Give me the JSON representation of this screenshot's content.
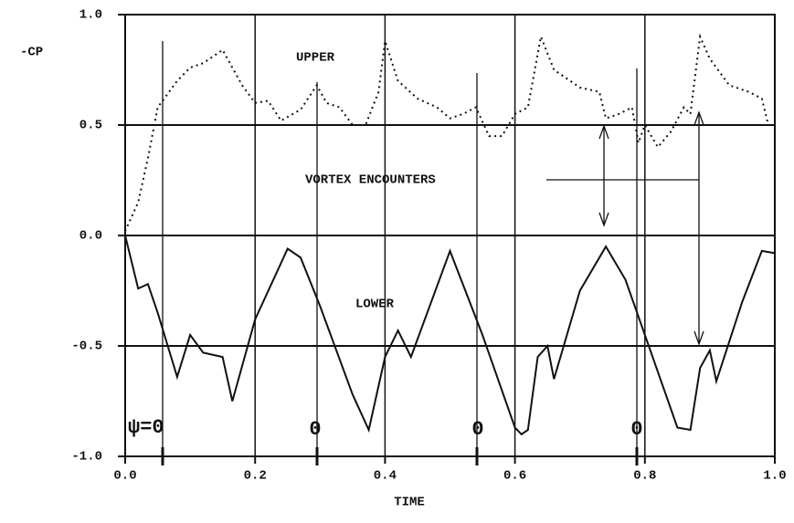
{
  "chart_data": {
    "type": "line",
    "xlabel": "TIME",
    "ylabel": "-CP",
    "annotations": [
      "VORTEX ENCOUNTERS",
      "ψ=0",
      "0",
      "0",
      "0"
    ],
    "xlim": [
      0,
      1
    ],
    "ylim": [
      -1,
      1
    ],
    "xticks": [
      {
        "value": 0,
        "label": "0.0"
      },
      0.2,
      0.4,
      0.6,
      0.8,
      {
        "value": 1,
        "label": "1.0"
      }
    ],
    "yticks": [
      {
        "value": 1,
        "label": "1.0"
      },
      0.5,
      {
        "value": 0,
        "label": "0.0"
      },
      -0.5,
      {
        "value": -1,
        "label": "-1.0"
      }
    ],
    "grid": true,
    "series": [
      {
        "name": "UPPER",
        "color": "#111111",
        "line_style": "dotted",
        "x": [
          0,
          0.02,
          0.035,
          0.05,
          0.06,
          0.08,
          0.1,
          0.12,
          0.15,
          0.18,
          0.2,
          0.22,
          0.24,
          0.27,
          0.295,
          0.31,
          0.33,
          0.35,
          0.37,
          0.39,
          0.4,
          0.42,
          0.45,
          0.48,
          0.5,
          0.52,
          0.54,
          0.56,
          0.58,
          0.6,
          0.62,
          0.64,
          0.66,
          0.7,
          0.73,
          0.74,
          0.76,
          0.78,
          0.79,
          0.8,
          0.82,
          0.84,
          0.86,
          0.87,
          0.885,
          0.9,
          0.93,
          0.96,
          0.98,
          0.99,
          1.0
        ],
        "values": [
          0.02,
          0.15,
          0.35,
          0.58,
          0.62,
          0.7,
          0.76,
          0.78,
          0.84,
          0.68,
          0.6,
          0.61,
          0.52,
          0.57,
          0.68,
          0.6,
          0.58,
          0.5,
          0.5,
          0.65,
          0.88,
          0.7,
          0.62,
          0.58,
          0.53,
          0.55,
          0.58,
          0.45,
          0.45,
          0.55,
          0.58,
          0.9,
          0.75,
          0.67,
          0.65,
          0.53,
          0.55,
          0.58,
          0.42,
          0.5,
          0.4,
          0.47,
          0.58,
          0.55,
          0.9,
          0.8,
          0.68,
          0.65,
          0.62,
          0.5,
          0.5
        ]
      },
      {
        "name": "LOWER",
        "color": "#111111",
        "line_style": "solid",
        "x": [
          0,
          0.02,
          0.035,
          0.05,
          0.08,
          0.1,
          0.12,
          0.15,
          0.165,
          0.2,
          0.25,
          0.27,
          0.3,
          0.35,
          0.375,
          0.4,
          0.42,
          0.44,
          0.5,
          0.55,
          0.6,
          0.61,
          0.62,
          0.635,
          0.65,
          0.66,
          0.7,
          0.74,
          0.77,
          0.8,
          0.85,
          0.87,
          0.885,
          0.9,
          0.91,
          0.95,
          0.98,
          1.0
        ],
        "values": [
          0,
          -0.24,
          -0.22,
          -0.35,
          -0.64,
          -0.45,
          -0.53,
          -0.55,
          -0.75,
          -0.38,
          -0.06,
          -0.1,
          -0.32,
          -0.72,
          -0.88,
          -0.55,
          -0.43,
          -0.55,
          -0.07,
          -0.45,
          -0.87,
          -0.9,
          -0.88,
          -0.55,
          -0.5,
          -0.65,
          -0.25,
          -0.05,
          -0.2,
          -0.45,
          -0.87,
          -0.88,
          -0.6,
          -0.52,
          -0.66,
          -0.3,
          -0.07,
          -0.08
        ]
      }
    ]
  }
}
